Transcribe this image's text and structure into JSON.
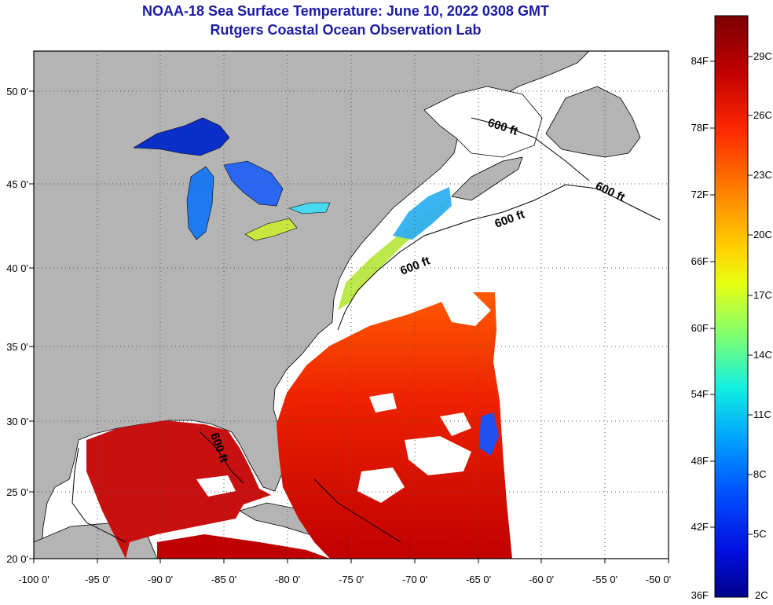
{
  "title": "NOAA-18 Sea Surface Temperature:  June 10, 2022 0308 GMT",
  "subtitle": "Rutgers Coastal Ocean Observation Lab",
  "x_axis": {
    "ticks": [
      "-100 0'",
      "-95 0'",
      "-90 0'",
      "-85 0'",
      "-80 0'",
      "-75 0'",
      "-70 0'",
      "-65 0'",
      "-60 0'",
      "-55 0'",
      "-50 0'"
    ],
    "range": [
      -100,
      -50
    ]
  },
  "y_axis": {
    "ticks": [
      "20 0'",
      "25 0'",
      "30 0'",
      "35 0'",
      "40 0'",
      "45 0'",
      "50 0'"
    ],
    "range": [
      20,
      52
    ]
  },
  "contour_labels": [
    "600 ft",
    "600 ft",
    "600 ft",
    "600 ft",
    "600 ft"
  ],
  "colorbar": {
    "fahrenheit": [
      "84F",
      "78F",
      "72F",
      "66F",
      "60F",
      "54F",
      "48F",
      "42F",
      "36F"
    ],
    "celsius": [
      "29C",
      "26C",
      "23C",
      "20C",
      "17C",
      "14C",
      "11C",
      "8C",
      "5C",
      "2C"
    ],
    "colors": [
      "#7a0000",
      "#c40000",
      "#ff2a00",
      "#ff8000",
      "#ffd000",
      "#e8ff10",
      "#80ff70",
      "#10f0e0",
      "#00a0ff",
      "#0050ff",
      "#0010e0",
      "#00008a"
    ]
  },
  "colors": {
    "land": "#b4b4b4",
    "no_data": "#ffffff",
    "title": "#1a1aa6"
  }
}
